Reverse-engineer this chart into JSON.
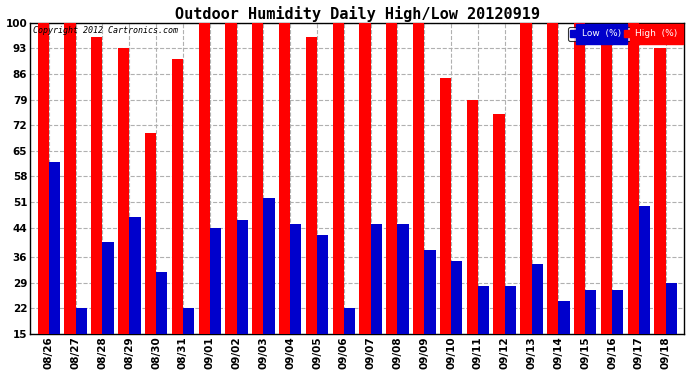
{
  "title": "Outdoor Humidity Daily High/Low 20120919",
  "copyright": "Copyright 2012 Cartronics.com",
  "categories": [
    "08/26",
    "08/27",
    "08/28",
    "08/29",
    "08/30",
    "08/31",
    "09/01",
    "09/02",
    "09/03",
    "09/04",
    "09/05",
    "09/06",
    "09/07",
    "09/08",
    "09/09",
    "09/10",
    "09/11",
    "09/12",
    "09/13",
    "09/14",
    "09/15",
    "09/16",
    "09/17",
    "09/18"
  ],
  "high_values": [
    100,
    100,
    96,
    93,
    70,
    90,
    100,
    100,
    100,
    100,
    96,
    100,
    100,
    100,
    100,
    85,
    79,
    75,
    100,
    100,
    100,
    97,
    100,
    93
  ],
  "low_values": [
    62,
    22,
    40,
    47,
    32,
    22,
    44,
    46,
    52,
    45,
    42,
    22,
    45,
    45,
    38,
    35,
    28,
    28,
    34,
    24,
    27,
    27,
    50,
    29
  ],
  "high_color": "#ff0000",
  "low_color": "#0000cc",
  "bg_color": "#ffffff",
  "grid_color": "#b0b0b0",
  "ylim": [
    15,
    100
  ],
  "yticks": [
    15,
    22,
    29,
    36,
    44,
    51,
    58,
    65,
    72,
    79,
    86,
    93,
    100
  ],
  "title_fontsize": 11,
  "tick_fontsize": 7.5,
  "legend_label_low": "Low  (%)",
  "legend_label_high": "High  (%)"
}
